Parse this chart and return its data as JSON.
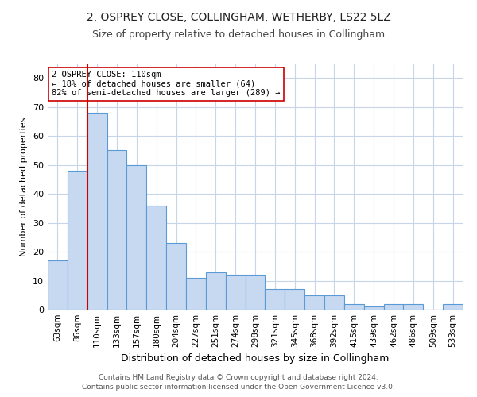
{
  "title1": "2, OSPREY CLOSE, COLLINGHAM, WETHERBY, LS22 5LZ",
  "title2": "Size of property relative to detached houses in Collingham",
  "xlabel": "Distribution of detached houses by size in Collingham",
  "ylabel": "Number of detached properties",
  "categories": [
    "63sqm",
    "86sqm",
    "110sqm",
    "133sqm",
    "157sqm",
    "180sqm",
    "204sqm",
    "227sqm",
    "251sqm",
    "274sqm",
    "298sqm",
    "321sqm",
    "345sqm",
    "368sqm",
    "392sqm",
    "415sqm",
    "439sqm",
    "462sqm",
    "486sqm",
    "509sqm",
    "533sqm"
  ],
  "values": [
    17,
    48,
    68,
    55,
    50,
    36,
    23,
    11,
    13,
    12,
    12,
    7,
    7,
    5,
    5,
    2,
    1,
    2,
    2,
    0,
    2
  ],
  "bar_color": "#c6d9f1",
  "bar_edge_color": "#5b9bd5",
  "highlight_index": 2,
  "highlight_line_color": "#cc0000",
  "annotation_text": "2 OSPREY CLOSE: 110sqm\n← 18% of detached houses are smaller (64)\n82% of semi-detached houses are larger (289) →",
  "annotation_box_color": "#ffffff",
  "annotation_box_edge": "#cc0000",
  "ylim": [
    0,
    85
  ],
  "yticks": [
    0,
    10,
    20,
    30,
    40,
    50,
    60,
    70,
    80
  ],
  "footer1": "Contains HM Land Registry data © Crown copyright and database right 2024.",
  "footer2": "Contains public sector information licensed under the Open Government Licence v3.0.",
  "bg_color": "#ffffff",
  "grid_color": "#c8d4e8"
}
